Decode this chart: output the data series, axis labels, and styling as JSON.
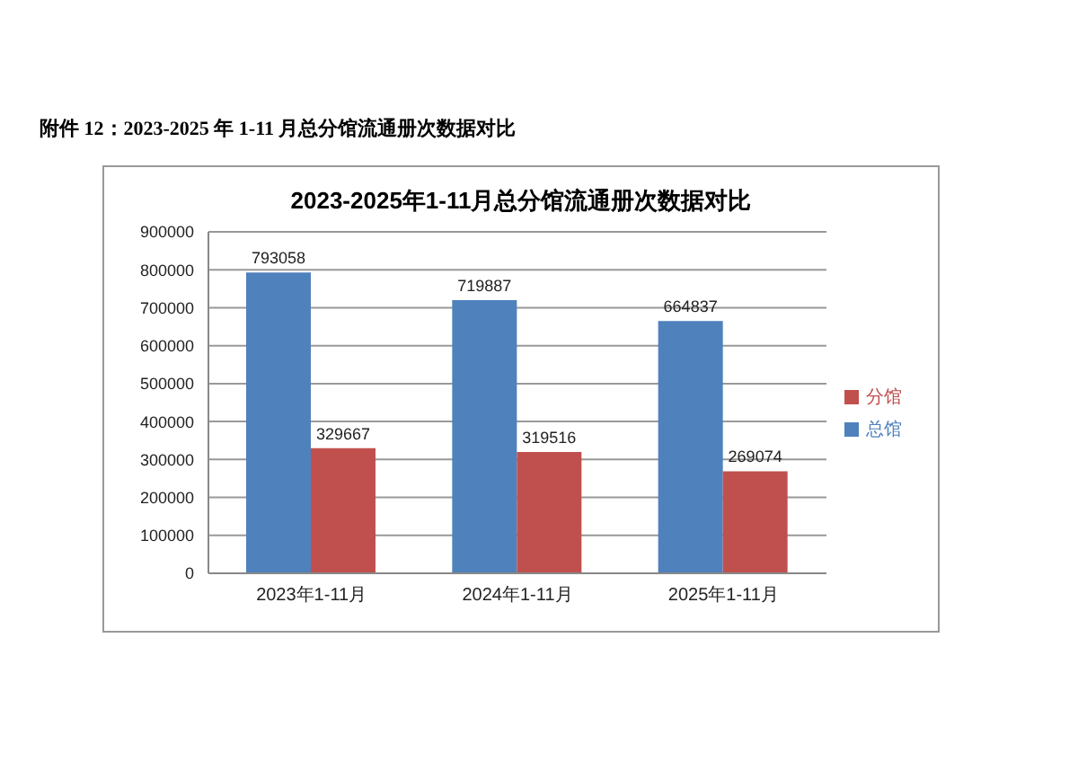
{
  "chart_data": {
    "type": "bar",
    "title": "附件 12：2023-2025 年 1-11 月总分馆流通册次数据对比",
    "subtitle": "2023-2025年1-11月总分馆流通册次数据对比",
    "categories": [
      "2023年1-11月",
      "2024年1-11月",
      "2025年1-11月"
    ],
    "series": [
      {
        "name": "总馆",
        "color": "#4f81bd",
        "values": [
          793058,
          719887,
          664837
        ]
      },
      {
        "name": "分馆",
        "color": "#c0504d",
        "values": [
          329667,
          319516,
          269074
        ]
      }
    ],
    "ylim": [
      0,
      900000
    ],
    "yticks": [
      0,
      100000,
      200000,
      300000,
      400000,
      500000,
      600000,
      700000,
      800000,
      900000
    ],
    "grid": "y",
    "legend": "right",
    "data_labels": true
  }
}
